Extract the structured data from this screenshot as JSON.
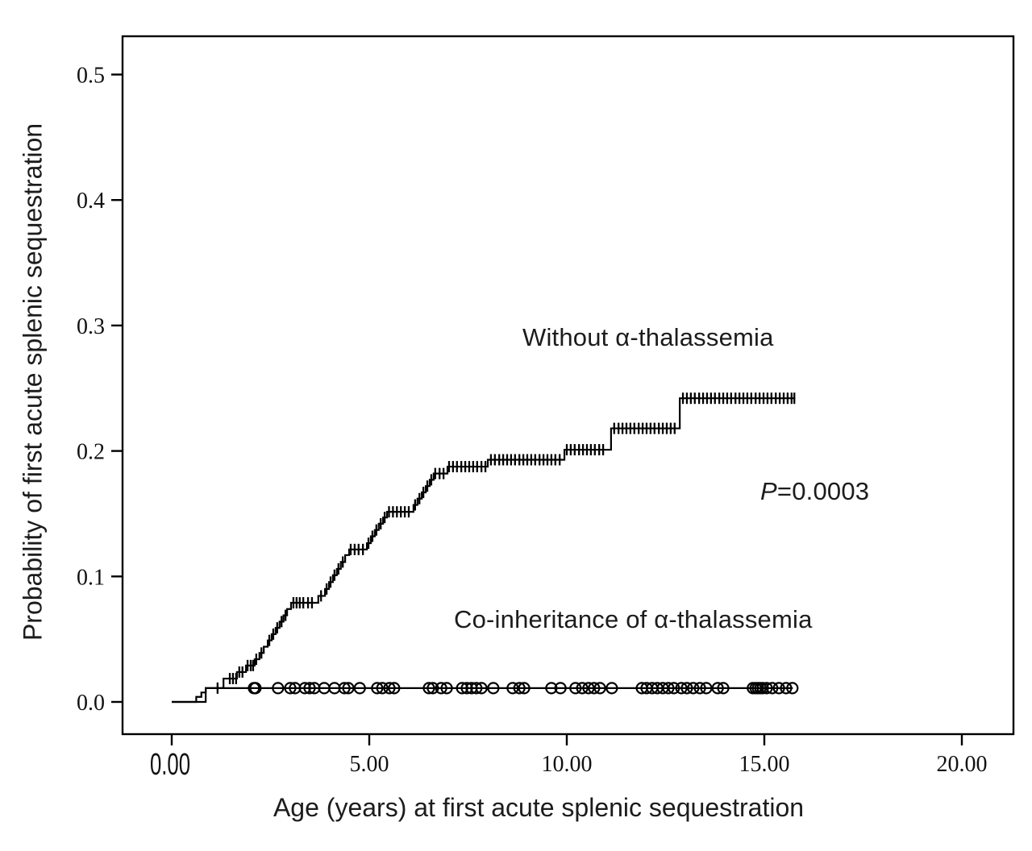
{
  "figure": {
    "background": "#ffffff",
    "line_color": "#000000",
    "annotations": {
      "without_label": "Without α-thalassemia",
      "co_label": "Co-inheritance of α-thalassemia",
      "p_prefix": "P",
      "p_rest": "=0.0003"
    }
  },
  "chart_data": {
    "type": "line",
    "subtype": "kaplan-meier-cumulative-incidence-steps",
    "title": "",
    "xlabel": "Age (years) at first acute splenic sequestration",
    "ylabel": "Probability of first acute splenic sequestration",
    "grid": false,
    "legend_position": "inline-annotations",
    "xlim": [
      -1.25,
      21.3
    ],
    "ylim": [
      -0.038,
      0.531
    ],
    "x_ticks": {
      "values": [
        0,
        5,
        10,
        15,
        20
      ],
      "labels": [
        "0.00",
        "5.00",
        "10.00",
        "15.00",
        "20.00"
      ]
    },
    "y_ticks": {
      "values": [
        0,
        0.1,
        0.2,
        0.3,
        0.4,
        0.5
      ],
      "labels": [
        "0.0",
        "0.1",
        "0.2",
        "0.3",
        "0.4",
        "0.5"
      ]
    },
    "p_value": "P=0.0003",
    "series": [
      {
        "name": "Without α-thalassemia",
        "style": "step",
        "marker": "plus-censor-tick",
        "color": "#000000",
        "end_x": 15.78,
        "steps": [
          [
            0,
            0
          ],
          [
            0.62,
            0.004
          ],
          [
            0.75,
            0.0075
          ],
          [
            0.86,
            0.011
          ],
          [
            1.31,
            0.0186
          ],
          [
            1.65,
            0.0238
          ],
          [
            1.88,
            0.029
          ],
          [
            2.1,
            0.034
          ],
          [
            2.22,
            0.039
          ],
          [
            2.33,
            0.044
          ],
          [
            2.43,
            0.049
          ],
          [
            2.53,
            0.054
          ],
          [
            2.63,
            0.059
          ],
          [
            2.73,
            0.064
          ],
          [
            2.83,
            0.069
          ],
          [
            2.92,
            0.074
          ],
          [
            3.02,
            0.079
          ],
          [
            3.71,
            0.0845
          ],
          [
            3.88,
            0.09
          ],
          [
            3.98,
            0.0955
          ],
          [
            4.08,
            0.101
          ],
          [
            4.18,
            0.106
          ],
          [
            4.28,
            0.1115
          ],
          [
            4.39,
            0.117
          ],
          [
            4.49,
            0.1215
          ],
          [
            4.94,
            0.1265
          ],
          [
            5.04,
            0.132
          ],
          [
            5.14,
            0.137
          ],
          [
            5.24,
            0.142
          ],
          [
            5.35,
            0.147
          ],
          [
            5.45,
            0.1515
          ],
          [
            6.12,
            0.157
          ],
          [
            6.22,
            0.162
          ],
          [
            6.33,
            0.167
          ],
          [
            6.43,
            0.172
          ],
          [
            6.53,
            0.177
          ],
          [
            6.63,
            0.182
          ],
          [
            6.98,
            0.1875
          ],
          [
            8.0,
            0.193
          ],
          [
            9.94,
            0.201
          ],
          [
            11.12,
            0.218
          ],
          [
            12.86,
            0.242
          ]
        ],
        "censor_ticks": [
          1.16,
          1.47,
          1.55,
          1.63,
          1.71,
          1.79,
          1.92,
          2.0,
          2.06,
          2.14,
          2.27,
          2.47,
          2.57,
          2.67,
          2.78,
          2.88,
          3.08,
          3.16,
          3.24,
          3.33,
          3.45,
          3.55,
          3.78,
          3.92,
          4.02,
          4.12,
          4.22,
          4.33,
          4.53,
          4.63,
          4.73,
          4.84,
          4.98,
          5.08,
          5.18,
          5.29,
          5.39,
          5.5,
          5.6,
          5.7,
          5.8,
          5.9,
          6.0,
          6.16,
          6.27,
          6.37,
          6.47,
          6.57,
          6.67,
          6.78,
          6.88,
          7.02,
          7.12,
          7.22,
          7.33,
          7.43,
          7.53,
          7.63,
          7.73,
          7.84,
          7.94,
          8.08,
          8.18,
          8.29,
          8.39,
          8.49,
          8.59,
          8.69,
          8.8,
          8.9,
          9.0,
          9.1,
          9.2,
          9.31,
          9.41,
          9.51,
          9.61,
          9.71,
          9.82,
          10.0,
          10.1,
          10.2,
          10.31,
          10.41,
          10.51,
          10.61,
          10.71,
          10.82,
          10.92,
          11.2,
          11.31,
          11.41,
          11.51,
          11.61,
          11.71,
          11.82,
          11.92,
          12.02,
          12.12,
          12.22,
          12.33,
          12.43,
          12.53,
          12.63,
          12.73,
          12.94,
          13.04,
          13.14,
          13.24,
          13.35,
          13.45,
          13.55,
          13.65,
          13.75,
          13.86,
          13.96,
          14.06,
          14.16,
          14.27,
          14.37,
          14.47,
          14.57,
          14.67,
          14.78,
          14.88,
          14.98,
          15.08,
          15.18,
          15.29,
          15.39,
          15.49,
          15.59,
          15.69,
          15.76
        ]
      },
      {
        "name": "Co-inheritance of α-thalassemia",
        "style": "step",
        "marker": "circle-censor",
        "color": "#000000",
        "end_x": 15.72,
        "steps": [
          [
            0,
            0
          ],
          [
            0.86,
            0.011
          ]
        ],
        "censor_circles": [
          2.08,
          2.12,
          2.69,
          3.0,
          3.12,
          3.37,
          3.49,
          3.61,
          3.86,
          4.12,
          4.37,
          4.47,
          4.76,
          5.2,
          5.33,
          5.51,
          5.63,
          6.51,
          6.61,
          6.82,
          6.96,
          7.35,
          7.47,
          7.59,
          7.71,
          7.84,
          8.14,
          8.63,
          8.8,
          8.92,
          9.61,
          9.84,
          10.22,
          10.39,
          10.55,
          10.69,
          10.84,
          11.14,
          11.9,
          12.02,
          12.16,
          12.29,
          12.43,
          12.57,
          12.71,
          12.9,
          13.04,
          13.2,
          13.37,
          13.53,
          13.82,
          13.96,
          14.71,
          14.78,
          14.84,
          14.9,
          14.96,
          15.06,
          15.2,
          15.37,
          15.55,
          15.71
        ]
      }
    ]
  }
}
